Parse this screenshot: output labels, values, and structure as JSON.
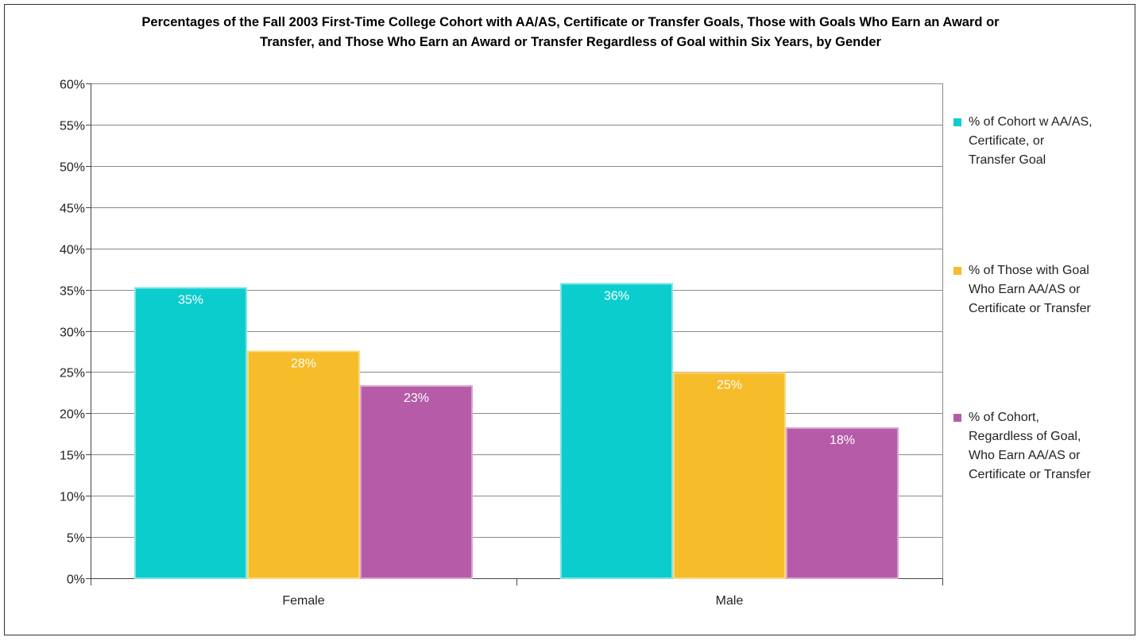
{
  "chart_data": {
    "type": "bar",
    "title_lines": [
      "Percentages of the Fall 2003 First-Time College Cohort with AA/AS, Certificate or Transfer Goals, Those with Goals Who Earn an Award or",
      "Transfer, and Those Who Earn an Award or Transfer Regardless of Goal within Six Years, by Gender"
    ],
    "categories": [
      "Female",
      "Male"
    ],
    "ylim": [
      0,
      60
    ],
    "yticks": [
      0,
      5,
      10,
      15,
      20,
      25,
      30,
      35,
      40,
      45,
      50,
      55,
      60
    ],
    "y_tick_suffix": "%",
    "grid": true,
    "legend_position": "right",
    "series": [
      {
        "name_lines": [
          "% of Cohort w AA/AS,",
          "Certificate, or",
          "Transfer Goal"
        ],
        "color": "#0ccdcd",
        "edge": "#7fe5e5",
        "values": [
          35.3,
          35.8
        ],
        "labels": [
          "35%",
          "36%"
        ]
      },
      {
        "name_lines": [
          "% of Those with Goal",
          "Who Earn AA/AS or",
          "Certificate or Transfer"
        ],
        "color": "#f7bc29",
        "edge": "#fbd97f",
        "values": [
          27.6,
          25.0
        ],
        "labels": [
          "28%",
          "25%"
        ]
      },
      {
        "name_lines": [
          "% of Cohort,",
          "Regardless of Goal,",
          "Who Earn AA/AS or",
          "Certificate or Transfer"
        ],
        "color": "#b65ba7",
        "edge": "#d9a3d0",
        "values": [
          23.4,
          18.3
        ],
        "labels": [
          "23%",
          "18%"
        ]
      }
    ]
  }
}
